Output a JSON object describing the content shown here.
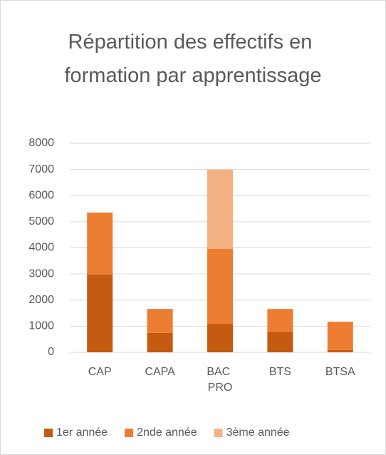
{
  "chart_data": {
    "type": "stacked_bar",
    "title": "Répartition des effectifs en formation par apprentissage",
    "categories": [
      "CAP",
      "CAPA",
      "BAC PRO",
      "BTS",
      "BTSA"
    ],
    "series": [
      {
        "name": "1er année",
        "color": "#c55a11",
        "values": [
          2980,
          740,
          1090,
          780,
          90
        ]
      },
      {
        "name": "2nde année",
        "color": "#ed7d31",
        "values": [
          2370,
          920,
          2870,
          880,
          1080
        ]
      },
      {
        "name": "3ème année",
        "color": "#f4b183",
        "values": [
          0,
          0,
          3040,
          0,
          0
        ]
      }
    ],
    "ylim": [
      0,
      8000
    ],
    "yticks": [
      0,
      1000,
      2000,
      3000,
      4000,
      5000,
      6000,
      7000,
      8000
    ],
    "grid": true,
    "legend": "bottom"
  }
}
